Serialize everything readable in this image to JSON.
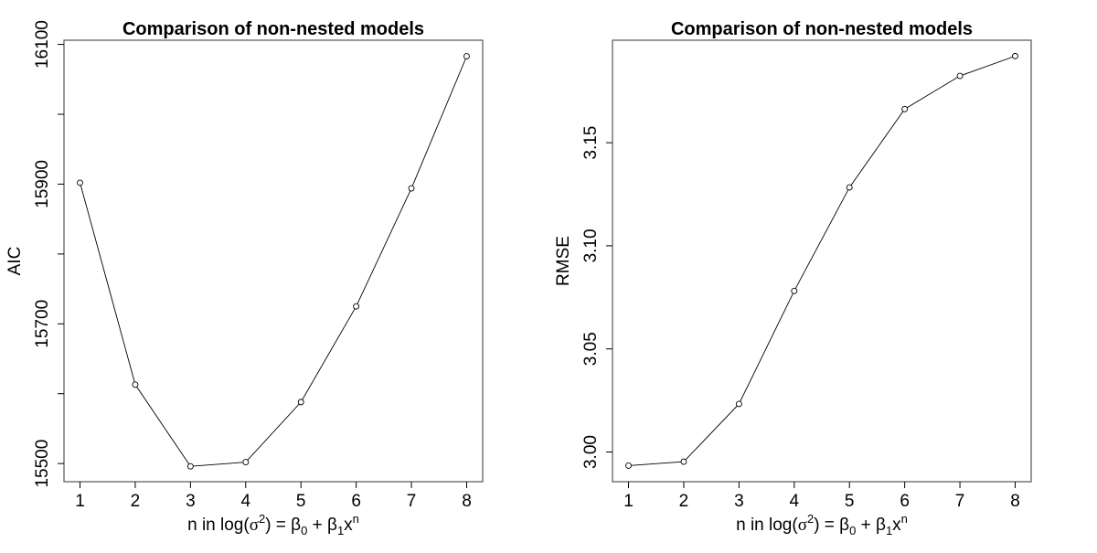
{
  "chart_data": [
    {
      "type": "line",
      "title": "Comparison of non-nested models",
      "xlabel": "n in log(σ²) = β0 + β1xⁿ",
      "xlabel_parts": {
        "pre": "n in log(",
        "sigma": "σ",
        "sup2": "2",
        "mid": ") = β",
        "sub0": "0",
        "plus": " + β",
        "sub1": "1",
        "x": "x",
        "supn": "n"
      },
      "ylabel": "AIC",
      "x": [
        1,
        2,
        3,
        4,
        5,
        6,
        7,
        8
      ],
      "y": [
        15902,
        15613,
        15496,
        15502,
        15588,
        15725,
        15894,
        16083
      ],
      "xlim": [
        0.71,
        8.29
      ],
      "ylim": [
        15474,
        16106
      ],
      "xticks": [
        "1",
        "2",
        "3",
        "4",
        "5",
        "6",
        "7",
        "8"
      ],
      "yticks": [
        "15500",
        "15700",
        "15900",
        "16100"
      ],
      "yticks_minor": [
        15600,
        15800,
        16000
      ],
      "grid": false,
      "marker": "open-circle",
      "color": "#000000"
    },
    {
      "type": "line",
      "title": "Comparison of non-nested models",
      "xlabel": "n in log(σ²) = β0 + β1xⁿ",
      "xlabel_parts": {
        "pre": "n in log(",
        "sigma": "σ",
        "sup2": "2",
        "mid": ") = β",
        "sub0": "0",
        "plus": " + β",
        "sub1": "1",
        "x": "x",
        "supn": "n"
      },
      "ylabel": "RMSE",
      "x": [
        1,
        2,
        3,
        4,
        5,
        6,
        7,
        8
      ],
      "y": [
        2.9934,
        2.9953,
        3.0233,
        3.0781,
        3.1283,
        3.1663,
        3.1824,
        3.192
      ],
      "xlim": [
        0.71,
        8.29
      ],
      "ylim": [
        2.9856,
        3.1997
      ],
      "xticks": [
        "1",
        "2",
        "3",
        "4",
        "5",
        "6",
        "7",
        "8"
      ],
      "yticks": [
        "3.00",
        "3.05",
        "3.10",
        "3.15"
      ],
      "grid": false,
      "marker": "open-circle",
      "color": "#000000"
    }
  ]
}
